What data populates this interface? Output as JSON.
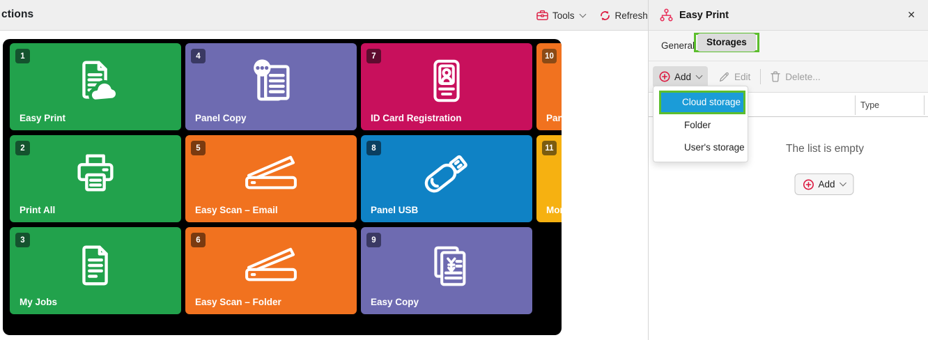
{
  "topbar": {
    "title": "ctions",
    "tools_label": "Tools",
    "refresh_label": "Refresh"
  },
  "panel": {
    "title": "Easy Print",
    "tabs": [
      {
        "label": "General",
        "active": false
      },
      {
        "label": "Storages",
        "active": true,
        "annotated": true
      }
    ],
    "toolbar": {
      "add_label": "Add",
      "edit_label": "Edit",
      "delete_label": "Delete..."
    },
    "menu": {
      "items": [
        {
          "label": "Cloud storage",
          "highlighted": true
        },
        {
          "label": "Folder",
          "highlighted": false
        },
        {
          "label": "User's storage",
          "highlighted": false
        }
      ]
    },
    "table": {
      "columns": [
        "Type"
      ]
    },
    "empty": {
      "message": "The list is empty",
      "add_label": "Add"
    }
  },
  "tiles": [
    {
      "num": "1",
      "label": "Easy Print",
      "color": "#22A24C",
      "badge_color": "#14532E",
      "col": 0,
      "row": 0
    },
    {
      "num": "2",
      "label": "Print All",
      "color": "#22A24C",
      "badge_color": "#14532E",
      "col": 0,
      "row": 1
    },
    {
      "num": "3",
      "label": "My Jobs",
      "color": "#22A24C",
      "badge_color": "#14532E",
      "col": 0,
      "row": 2
    },
    {
      "num": "4",
      "label": "Panel Copy",
      "color": "#6E6BB1",
      "badge_color": "#3A3963",
      "col": 1,
      "row": 0
    },
    {
      "num": "5",
      "label": "Easy Scan – Email",
      "color": "#F1721F",
      "badge_color": "#7A3A10",
      "col": 1,
      "row": 1
    },
    {
      "num": "6",
      "label": "Easy Scan – Folder",
      "color": "#F1721F",
      "badge_color": "#7A3A10",
      "col": 1,
      "row": 2
    },
    {
      "num": "7",
      "label": "ID Card Registration",
      "color": "#C8105C",
      "badge_color": "#5E0C2F",
      "col": 2,
      "row": 0
    },
    {
      "num": "8",
      "label": "Panel USB",
      "color": "#0F82C5",
      "badge_color": "#0A3F60",
      "col": 2,
      "row": 1
    },
    {
      "num": "9",
      "label": "Easy Copy",
      "color": "#6E6BB1",
      "badge_color": "#3A3963",
      "col": 2,
      "row": 2
    },
    {
      "num": "10",
      "label": "Pan",
      "color": "#F1721F",
      "badge_color": "#8A4A16",
      "col": 3,
      "row": 0
    },
    {
      "num": "11",
      "label": "Mor",
      "color": "#F6B111",
      "badge_color": "#7B5C10",
      "col": 3,
      "row": 1
    }
  ],
  "icons": {
    "close": "✕"
  },
  "colors": {
    "accent_red": "#DC1940",
    "highlight_blue": "#1B9CD8",
    "annotation_green": "#5CBE2D",
    "board_background": "#000000",
    "bar_background": "#efefef"
  }
}
